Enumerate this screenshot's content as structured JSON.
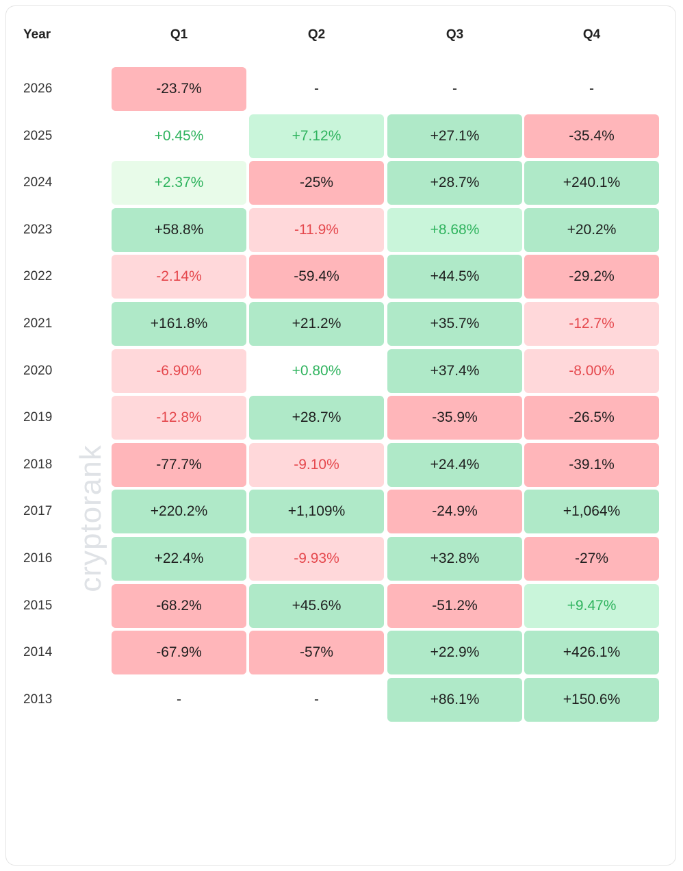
{
  "table": {
    "header": [
      "Year",
      "Q1",
      "Q2",
      "Q3",
      "Q4"
    ],
    "rows": [
      [
        "2026",
        "-23.7%",
        "-",
        "-",
        "-"
      ],
      [
        "2025",
        "+0.45%",
        "+7.12%",
        "+27.1%",
        "-35.4%"
      ],
      [
        "2024",
        "+2.37%",
        "-25%",
        "+28.7%",
        "+240.1%"
      ],
      [
        "2023",
        "+58.8%",
        "-11.9%",
        "+8.68%",
        "+20.2%"
      ],
      [
        "2022",
        "-2.14%",
        "-59.4%",
        "+44.5%",
        "-29.2%"
      ],
      [
        "2021",
        "+161.8%",
        "+21.2%",
        "+35.7%",
        "-12.7%"
      ],
      [
        "2020",
        "-6.90%",
        "+0.80%",
        "+37.4%",
        "-8.00%"
      ],
      [
        "2019",
        "-12.8%",
        "+28.7%",
        "-35.9%",
        "-26.5%"
      ],
      [
        "2018",
        "-77.7%",
        "-9.10%",
        "+24.4%",
        "-39.1%"
      ],
      [
        "2017",
        "+220.2%",
        "+1,109%",
        "-24.9%",
        "+1,064%"
      ],
      [
        "2016",
        "+22.4%",
        "-9.93%",
        "+32.8%",
        "-27%"
      ],
      [
        "2015",
        "-68.2%",
        "+45.6%",
        "-51.2%",
        "+9.47%"
      ],
      [
        "2014",
        "-67.9%",
        "-57%",
        "+22.9%",
        "+426.1%"
      ],
      [
        "2013",
        "-",
        "-",
        "+86.1%",
        "+150.6%"
      ]
    ]
  },
  "watermark": "cryptorank"
}
